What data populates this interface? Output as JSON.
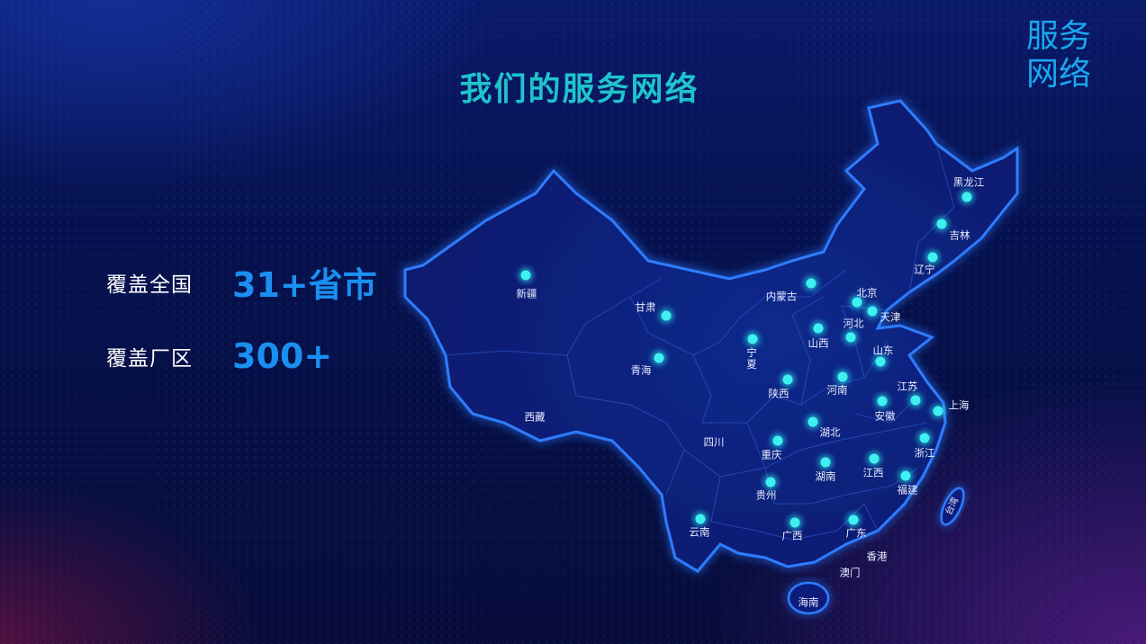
{
  "title": "我们的服务网络",
  "corner_label": "服务网络",
  "stats": [
    {
      "label": "覆盖全国",
      "value": "31+省市"
    },
    {
      "label": "覆盖厂区",
      "value": "300+"
    }
  ],
  "colors": {
    "title": "#1fc3cc",
    "accent": "#1a8ff0",
    "dot": "#3ff0f0",
    "map_fill": "#0b1f7a",
    "map_border": "#2e7cff"
  },
  "map": {
    "provinces": [
      {
        "name": "新疆",
        "marked": true
      },
      {
        "name": "甘肃",
        "marked": true
      },
      {
        "name": "青海",
        "marked": true
      },
      {
        "name": "西藏",
        "marked": false
      },
      {
        "name": "内蒙古",
        "marked": true
      },
      {
        "name": "宁\n夏",
        "marked": true
      },
      {
        "name": "陕西",
        "marked": true
      },
      {
        "name": "山西",
        "marked": true
      },
      {
        "name": "河北",
        "marked": true
      },
      {
        "name": "北京",
        "marked": true
      },
      {
        "name": "天津",
        "marked": true
      },
      {
        "name": "黑龙江",
        "marked": true
      },
      {
        "name": "吉林",
        "marked": true
      },
      {
        "name": "辽宁",
        "marked": true
      },
      {
        "name": "山东",
        "marked": true
      },
      {
        "name": "河南",
        "marked": true
      },
      {
        "name": "江苏",
        "marked": true
      },
      {
        "name": "上海",
        "marked": true
      },
      {
        "name": "安徽",
        "marked": true
      },
      {
        "name": "湖北",
        "marked": true
      },
      {
        "name": "四川",
        "marked": false
      },
      {
        "name": "重庆",
        "marked": true
      },
      {
        "name": "浙江",
        "marked": true
      },
      {
        "name": "湖南",
        "marked": true
      },
      {
        "name": "江西",
        "marked": true
      },
      {
        "name": "福建",
        "marked": true
      },
      {
        "name": "贵州",
        "marked": true
      },
      {
        "name": "云南",
        "marked": true
      },
      {
        "name": "广西",
        "marked": true
      },
      {
        "name": "广东",
        "marked": true
      },
      {
        "name": "香港",
        "marked": false
      },
      {
        "name": "澳门",
        "marked": false
      },
      {
        "name": "海南",
        "marked": false
      },
      {
        "name": "台湾",
        "marked": false
      }
    ]
  }
}
